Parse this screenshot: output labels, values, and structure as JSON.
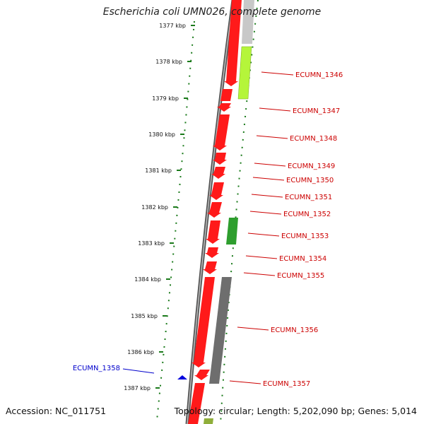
{
  "title": "Escherichia coli UMN026, complete genome",
  "accession": "Accession: NC_011751",
  "topology": "Topology: circular; Length: 5,202,090 bp; Genes: 5,014",
  "colors": {
    "forward_gene": "#ff1a1a",
    "gene_label": "#cc0000",
    "reverse_label": "#0000cc",
    "green_gene": "#2e9e2e",
    "lime_gene": "#b5f53a",
    "gray_gene": "#6e6e6e",
    "tick": "#1a7a1a"
  },
  "kbp_ticks": [
    "1377 kbp",
    "1378 kbp",
    "1379 kbp",
    "1380 kbp",
    "1381 kbp",
    "1382 kbp",
    "1383 kbp",
    "1384 kbp",
    "1385 kbp",
    "1386 kbp",
    "1387 kbp"
  ],
  "gene_labels": [
    {
      "name": "ECUMN_1346",
      "strand": "forward"
    },
    {
      "name": "ECUMN_1347",
      "strand": "forward"
    },
    {
      "name": "ECUMN_1348",
      "strand": "forward"
    },
    {
      "name": "ECUMN_1349",
      "strand": "forward"
    },
    {
      "name": "ECUMN_1350",
      "strand": "forward"
    },
    {
      "name": "ECUMN_1351",
      "strand": "forward"
    },
    {
      "name": "ECUMN_1352",
      "strand": "forward"
    },
    {
      "name": "ECUMN_1353",
      "strand": "forward"
    },
    {
      "name": "ECUMN_1354",
      "strand": "forward"
    },
    {
      "name": "ECUMN_1355",
      "strand": "forward"
    },
    {
      "name": "ECUMN_1356",
      "strand": "forward"
    },
    {
      "name": "ECUMN_1357",
      "strand": "forward"
    },
    {
      "name": "ECUMN_1358",
      "strand": "reverse"
    }
  ]
}
